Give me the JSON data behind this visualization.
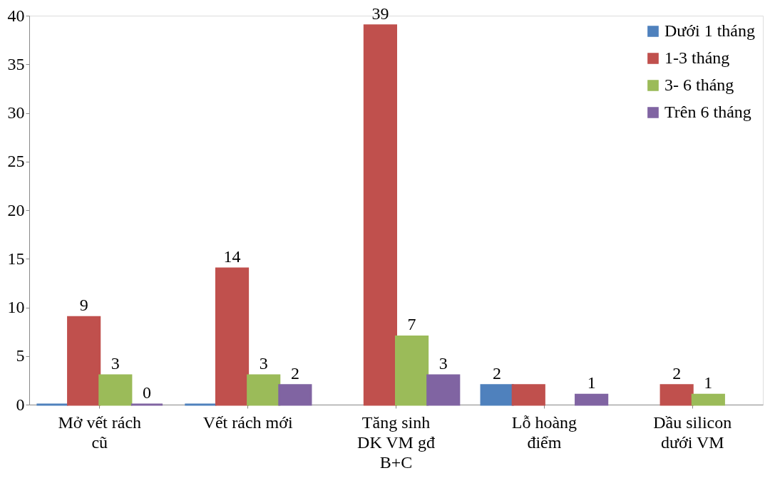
{
  "chart_data": {
    "type": "bar",
    "categories": [
      "Mở vết rách\ncũ",
      "Vết rách mới",
      "Tăng sinh\nDK VM gđ\nB+C",
      "Lỗ hoàng\nđiểm",
      "Dầu silicon\ndưới VM"
    ],
    "series": [
      {
        "name": "Dưới 1 tháng",
        "color": "#4f81bd",
        "values": [
          0,
          0,
          null,
          2,
          null
        ],
        "value_labels": [
          null,
          null,
          null,
          "2",
          null
        ]
      },
      {
        "name": "1-3 tháng",
        "color": "#c0504d",
        "values": [
          9,
          14,
          39,
          2,
          2
        ],
        "value_labels": [
          "9",
          "14",
          "39",
          null,
          "2"
        ]
      },
      {
        "name": "3- 6 tháng",
        "color": "#9bbb59",
        "values": [
          3,
          3,
          7,
          null,
          1
        ],
        "value_labels": [
          "3",
          "3",
          "7",
          null,
          "1"
        ]
      },
      {
        "name": "Trên 6 tháng",
        "color": "#8064a2",
        "values": [
          0,
          2,
          3,
          1,
          null
        ],
        "value_labels": [
          "0",
          "2",
          "3",
          "1",
          null
        ]
      }
    ],
    "ylim": [
      0,
      40
    ],
    "yticks": [
      0,
      5,
      10,
      15,
      20,
      25,
      30,
      35,
      40
    ],
    "grid": false,
    "legend": "top right"
  }
}
